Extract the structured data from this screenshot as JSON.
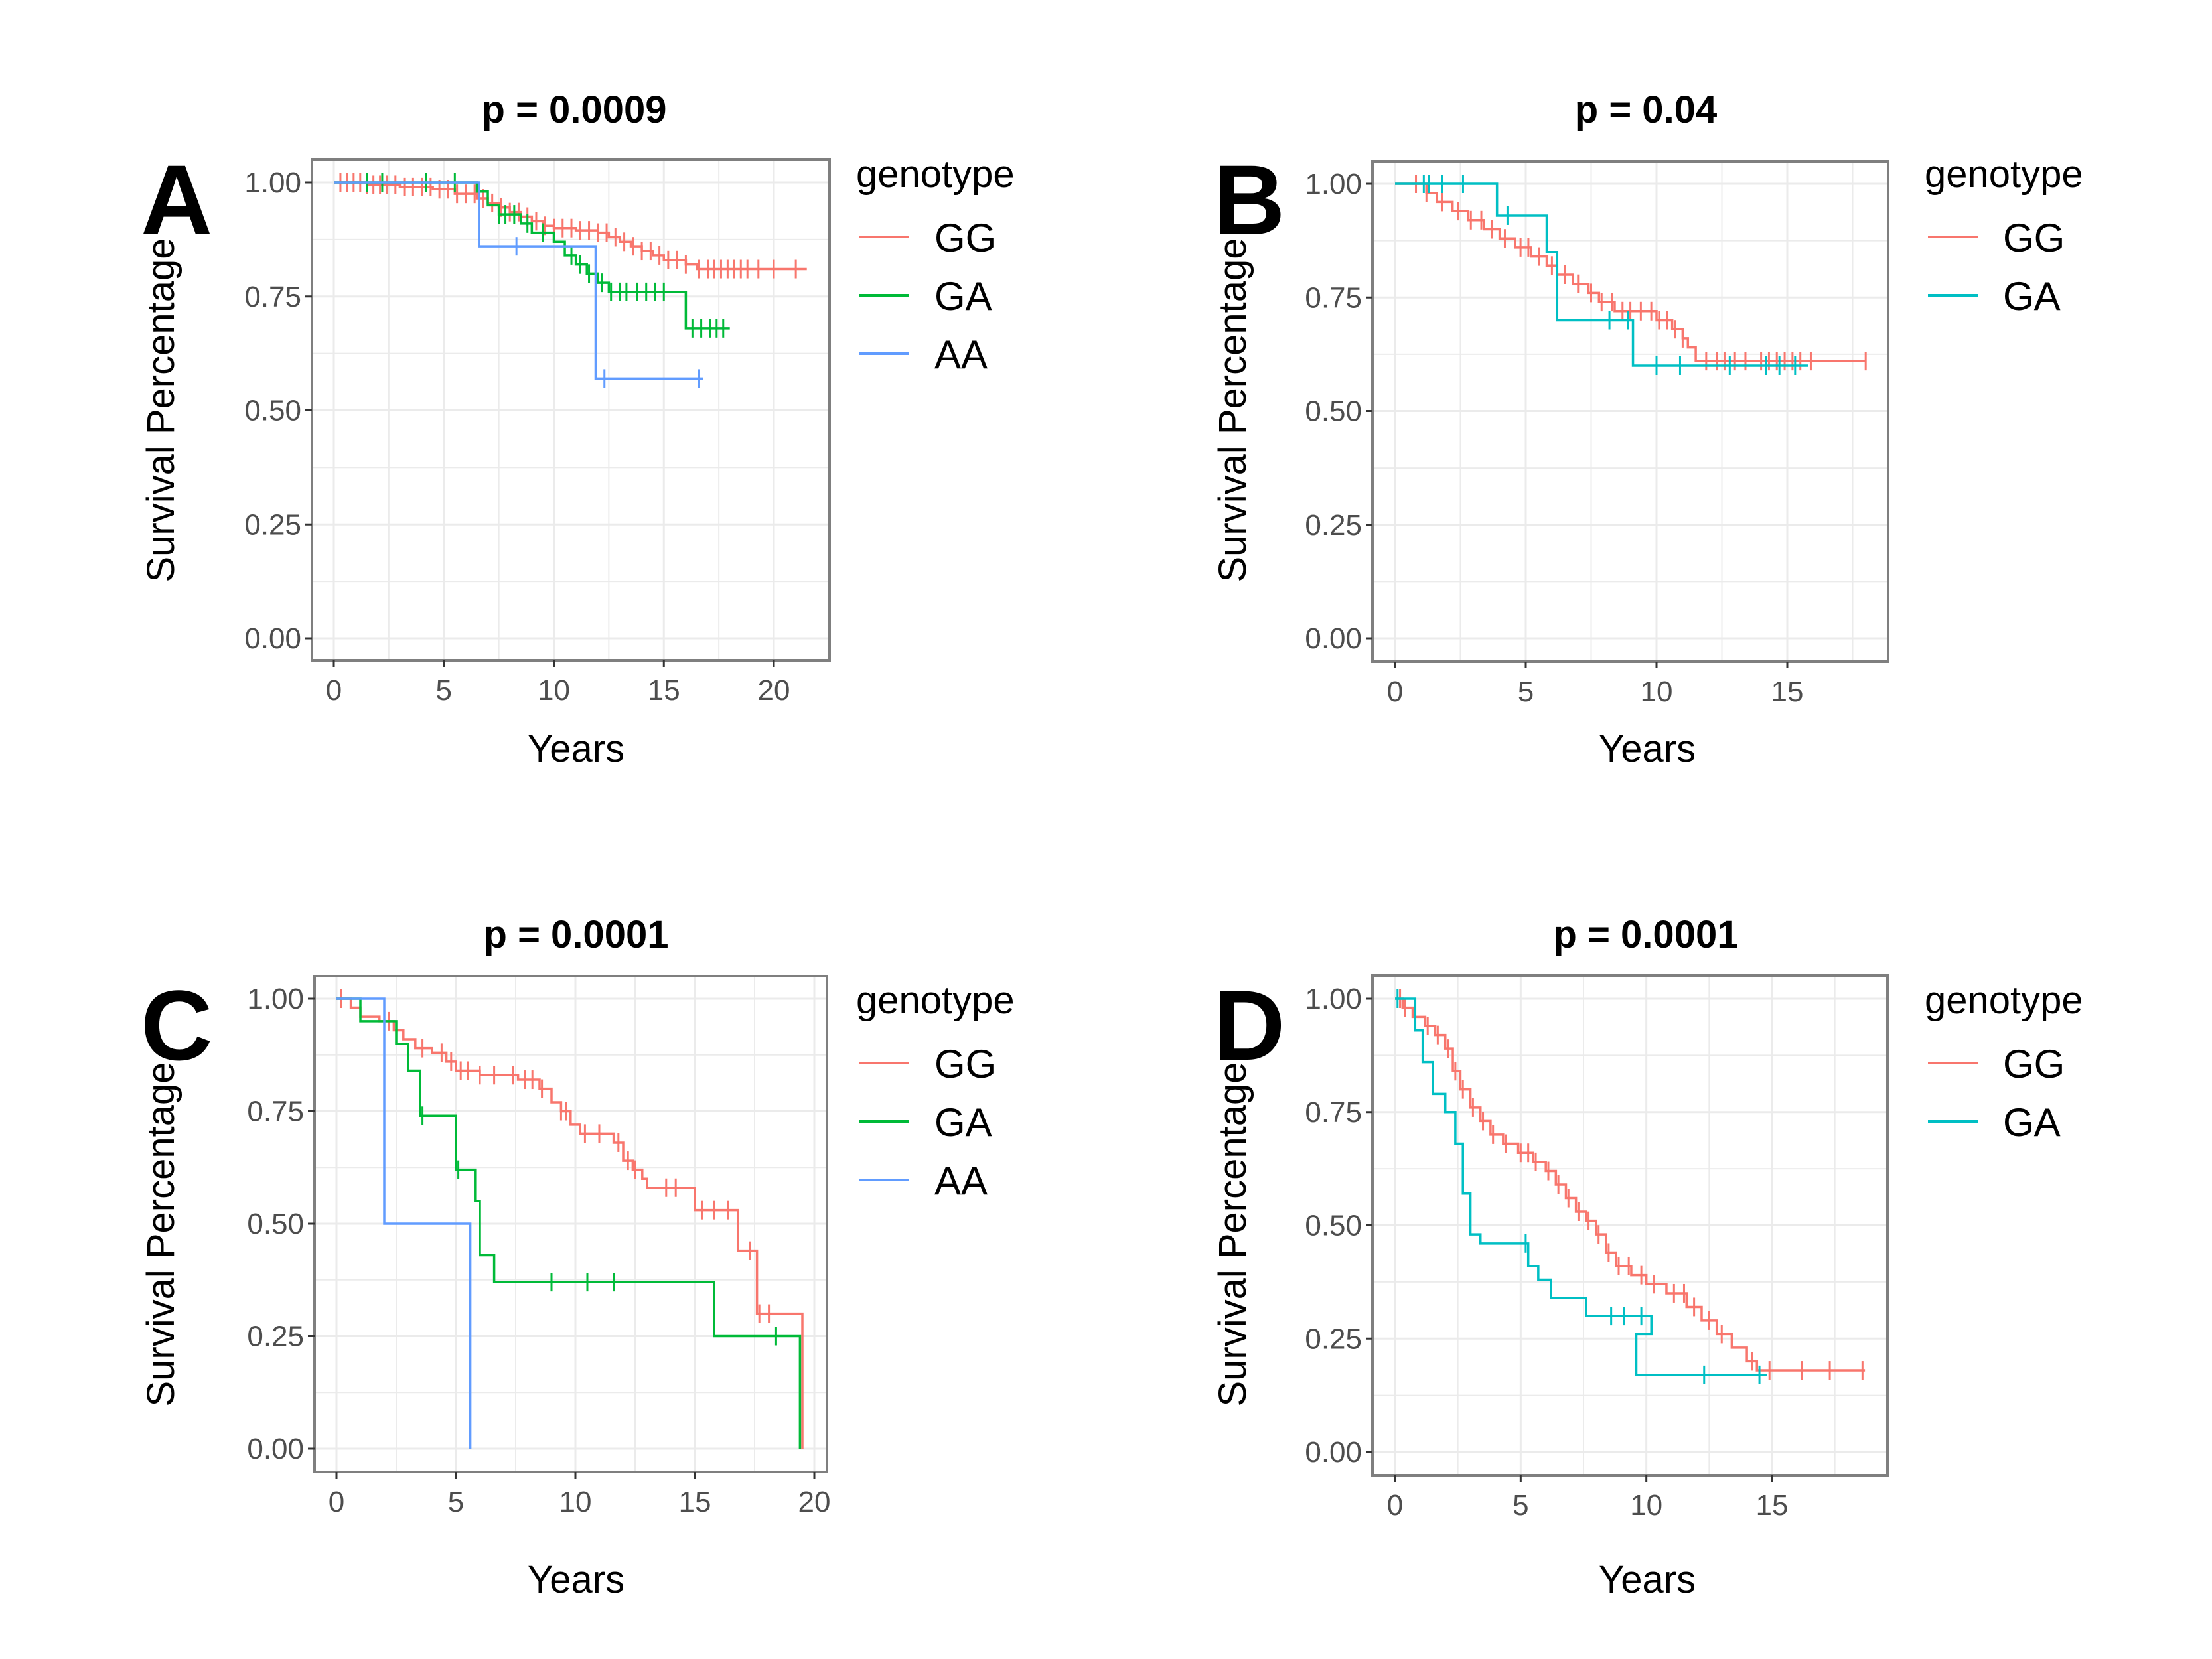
{
  "figure": {
    "description": "Kaplan-Meier survival curves by genotype, four panels"
  },
  "chart_data": [
    {
      "type": "line",
      "subtype": "kaplan-meier-step",
      "panel_label": "A",
      "title": "p = 0.0009",
      "xlabel": "Years",
      "ylabel": "Survival Percentage",
      "xlim": [
        -1,
        22.5
      ],
      "ylim": [
        -0.045,
        1.05
      ],
      "xticks": [
        0,
        5,
        10,
        15,
        20
      ],
      "xtick_labels": [
        "0",
        "5",
        "10",
        "15",
        "20"
      ],
      "yticks": [
        0,
        0.25,
        0.5,
        0.75,
        1
      ],
      "ytick_labels": [
        "0.00",
        "0.25",
        "0.50",
        "0.75",
        "1.00"
      ],
      "grid": true,
      "legend": {
        "title": "genotype",
        "placement": "right"
      },
      "series": [
        {
          "name": "GG",
          "color": "#F8766D",
          "steps": [
            [
              0,
              1.0
            ],
            [
              1.5,
              0.995
            ],
            [
              3,
              0.99
            ],
            [
              4.5,
              0.985
            ],
            [
              5.5,
              0.975
            ],
            [
              6.5,
              0.965
            ],
            [
              7,
              0.955
            ],
            [
              7.5,
              0.945
            ],
            [
              8,
              0.935
            ],
            [
              8.5,
              0.925
            ],
            [
              9,
              0.915
            ],
            [
              9.5,
              0.905
            ],
            [
              10,
              0.9
            ],
            [
              11,
              0.895
            ],
            [
              12,
              0.89
            ],
            [
              12.5,
              0.88
            ],
            [
              13,
              0.87
            ],
            [
              13.5,
              0.86
            ],
            [
              14,
              0.85
            ],
            [
              14.5,
              0.84
            ],
            [
              15,
              0.83
            ],
            [
              16,
              0.82
            ],
            [
              16.5,
              0.81
            ],
            [
              21.5,
              0.81
            ]
          ],
          "censor_times": [
            0.3,
            0.6,
            0.9,
            1.2,
            1.5,
            1.8,
            2.1,
            2.4,
            2.8,
            3.2,
            3.6,
            4,
            4.4,
            4.8,
            5.2,
            5.6,
            6,
            6.4,
            6.8,
            7.2,
            7.6,
            8,
            8.4,
            8.8,
            9.2,
            9.6,
            10,
            10.4,
            10.8,
            11.2,
            11.6,
            12,
            12.4,
            12.8,
            13.2,
            13.6,
            14,
            14.4,
            14.8,
            15.2,
            15.6,
            16,
            16.6,
            17,
            17.3,
            17.6,
            17.9,
            18.2,
            18.5,
            18.8,
            19.3,
            20,
            21
          ]
        },
        {
          "name": "GA",
          "color": "#00BA38",
          "steps": [
            [
              0,
              1.0
            ],
            [
              6.5,
              0.98
            ],
            [
              7,
              0.95
            ],
            [
              7.5,
              0.93
            ],
            [
              8.5,
              0.91
            ],
            [
              9,
              0.89
            ],
            [
              10,
              0.87
            ],
            [
              10.5,
              0.84
            ],
            [
              11,
              0.82
            ],
            [
              11.5,
              0.8
            ],
            [
              12,
              0.78
            ],
            [
              12.5,
              0.76
            ],
            [
              15.5,
              0.76
            ],
            [
              16,
              0.68
            ],
            [
              18,
              0.68
            ]
          ],
          "censor_times": [
            1.5,
            2.2,
            4.2,
            5.5,
            7.5,
            7.8,
            8.2,
            8.8,
            9.5,
            10.8,
            11.2,
            11.6,
            12.2,
            12.6,
            13,
            13.3,
            13.8,
            14.2,
            14.6,
            15,
            16.3,
            16.7,
            17.1,
            17.4,
            17.7
          ]
        },
        {
          "name": "AA",
          "color": "#619CFF",
          "steps": [
            [
              0,
              1.0
            ],
            [
              6.6,
              0.86
            ],
            [
              11.9,
              0.57
            ],
            [
              16.8,
              0.57
            ]
          ],
          "censor_times": [
            8.3,
            12.3,
            16.6
          ]
        }
      ]
    },
    {
      "type": "line",
      "subtype": "kaplan-meier-step",
      "panel_label": "B",
      "title": "p = 0.04",
      "xlabel": "Years",
      "ylabel": "Survival Percentage",
      "xlim": [
        -0.9,
        18.3
      ],
      "ylim": [
        -0.045,
        1.05
      ],
      "xticks": [
        0,
        5,
        10,
        15
      ],
      "xtick_labels": [
        "0",
        "5",
        "10",
        "15"
      ],
      "yticks": [
        0,
        0.25,
        0.5,
        0.75,
        1
      ],
      "ytick_labels": [
        "0.00",
        "0.25",
        "0.50",
        "0.75",
        "1.00"
      ],
      "grid": true,
      "legend": {
        "title": "genotype",
        "placement": "right"
      },
      "series": [
        {
          "name": "GG",
          "color": "#F8766D",
          "steps": [
            [
              0,
              1.0
            ],
            [
              1.2,
              0.98
            ],
            [
              1.6,
              0.96
            ],
            [
              2.2,
              0.94
            ],
            [
              2.8,
              0.92
            ],
            [
              3.4,
              0.9
            ],
            [
              4,
              0.88
            ],
            [
              4.6,
              0.86
            ],
            [
              5.2,
              0.84
            ],
            [
              5.8,
              0.82
            ],
            [
              6.2,
              0.8
            ],
            [
              6.8,
              0.78
            ],
            [
              7.4,
              0.76
            ],
            [
              7.8,
              0.74
            ],
            [
              8.4,
              0.72
            ],
            [
              9.4,
              0.72
            ],
            [
              10,
              0.7
            ],
            [
              10.6,
              0.68
            ],
            [
              11,
              0.66
            ],
            [
              11.2,
              0.64
            ],
            [
              11.5,
              0.61
            ],
            [
              12,
              0.61
            ],
            [
              18,
              0.61
            ]
          ],
          "censor_times": [
            0.8,
            1.2,
            1.8,
            2.4,
            2.9,
            3.3,
            3.7,
            4.2,
            4.8,
            5.1,
            5.5,
            6,
            6.5,
            7,
            7.5,
            7.9,
            8.3,
            8.7,
            9,
            9.4,
            9.8,
            10.1,
            10.4,
            10.7,
            11,
            11.9,
            12.3,
            12.6,
            13,
            13.4,
            14,
            14.3,
            14.6,
            14.9,
            15.2,
            15.5,
            15.9,
            18
          ]
        },
        {
          "name": "GA",
          "color": "#00BFC4",
          "steps": [
            [
              0,
              1.0
            ],
            [
              3.9,
              0.93
            ],
            [
              5.8,
              0.85
            ],
            [
              6.2,
              0.7
            ],
            [
              9.1,
              0.6
            ],
            [
              15.8,
              0.6
            ]
          ],
          "censor_times": [
            1.1,
            1.3,
            1.8,
            2.6,
            4.3,
            8.2,
            8.9,
            10,
            10.9,
            12.8,
            14.2,
            14.7,
            15.3
          ]
        }
      ]
    },
    {
      "type": "line",
      "subtype": "kaplan-meier-step",
      "panel_label": "C",
      "title": "p = 0.0001",
      "xlabel": "Years",
      "ylabel": "Survival Percentage",
      "xlim": [
        -0.9,
        20.5
      ],
      "ylim": [
        -0.05,
        1.05
      ],
      "xticks": [
        0,
        5,
        10,
        15,
        20
      ],
      "xtick_labels": [
        "0",
        "5",
        "10",
        "15",
        "20"
      ],
      "yticks": [
        0,
        0.25,
        0.5,
        0.75,
        1
      ],
      "ytick_labels": [
        "0.00",
        "0.25",
        "0.50",
        "0.75",
        "1.00"
      ],
      "grid": true,
      "legend": {
        "title": "genotype",
        "placement": "right"
      },
      "series": [
        {
          "name": "GG",
          "color": "#F8766D",
          "steps": [
            [
              0,
              1.0
            ],
            [
              0.6,
              0.98
            ],
            [
              1,
              0.96
            ],
            [
              1.8,
              0.95
            ],
            [
              2.4,
              0.93
            ],
            [
              2.8,
              0.91
            ],
            [
              3.3,
              0.89
            ],
            [
              4,
              0.88
            ],
            [
              4.6,
              0.86
            ],
            [
              5,
              0.84
            ],
            [
              6,
              0.83
            ],
            [
              7.6,
              0.82
            ],
            [
              8.5,
              0.8
            ],
            [
              9,
              0.77
            ],
            [
              9.4,
              0.75
            ],
            [
              9.8,
              0.72
            ],
            [
              10.2,
              0.7
            ],
            [
              11.6,
              0.68
            ],
            [
              12,
              0.64
            ],
            [
              12.4,
              0.62
            ],
            [
              12.8,
              0.6
            ],
            [
              13,
              0.58
            ],
            [
              15,
              0.53
            ],
            [
              16.8,
              0.44
            ],
            [
              17.6,
              0.3
            ],
            [
              19.5,
              0.0
            ]
          ],
          "censor_times": [
            0.2,
            2.2,
            2.5,
            3.6,
            4.4,
            4.8,
            5.2,
            5.5,
            6,
            6.6,
            7.4,
            7.9,
            8.2,
            8.6,
            9.4,
            9.6,
            10.4,
            11,
            11.8,
            12.2,
            12.5,
            13.8,
            14.2,
            15.3,
            15.8,
            16.4,
            17.3,
            17.7,
            18.1
          ]
        },
        {
          "name": "GA",
          "color": "#00BA38",
          "steps": [
            [
              0,
              1.0
            ],
            [
              1,
              0.95
            ],
            [
              2.5,
              0.9
            ],
            [
              3,
              0.84
            ],
            [
              3.5,
              0.74
            ],
            [
              5,
              0.62
            ],
            [
              5.8,
              0.55
            ],
            [
              6,
              0.43
            ],
            [
              6.6,
              0.37
            ],
            [
              15.8,
              0.25
            ],
            [
              19.4,
              0.0
            ]
          ],
          "censor_times": [
            3.6,
            5.1,
            9,
            10.5,
            11.6,
            18.4
          ]
        },
        {
          "name": "AA",
          "color": "#619CFF",
          "steps": [
            [
              0,
              1.0
            ],
            [
              2,
              0.5
            ],
            [
              5.6,
              0.0
            ]
          ],
          "censor_times": []
        }
      ]
    },
    {
      "type": "line",
      "subtype": "kaplan-meier-step",
      "panel_label": "D",
      "title": "p = 0.0001",
      "xlabel": "Years",
      "ylabel": "Survival Percentage",
      "xlim": [
        -0.9,
        19.4
      ],
      "ylim": [
        -0.05,
        1.05
      ],
      "xticks": [
        0,
        5,
        10,
        15
      ],
      "xtick_labels": [
        "0",
        "5",
        "10",
        "15"
      ],
      "yticks": [
        0,
        0.25,
        0.5,
        0.75,
        1
      ],
      "ytick_labels": [
        "0.00",
        "0.25",
        "0.50",
        "0.75",
        "1.00"
      ],
      "grid": true,
      "legend": {
        "title": "genotype",
        "placement": "right"
      },
      "series": [
        {
          "name": "GG",
          "color": "#F8766D",
          "steps": [
            [
              0,
              1.0
            ],
            [
              0.3,
              0.98
            ],
            [
              0.7,
              0.96
            ],
            [
              1.2,
              0.94
            ],
            [
              1.6,
              0.92
            ],
            [
              2,
              0.89
            ],
            [
              2.3,
              0.84
            ],
            [
              2.6,
              0.8
            ],
            [
              3,
              0.76
            ],
            [
              3.4,
              0.73
            ],
            [
              3.8,
              0.7
            ],
            [
              4.3,
              0.68
            ],
            [
              4.9,
              0.66
            ],
            [
              5.5,
              0.64
            ],
            [
              6,
              0.62
            ],
            [
              6.4,
              0.59
            ],
            [
              6.8,
              0.56
            ],
            [
              7.2,
              0.53
            ],
            [
              7.6,
              0.51
            ],
            [
              8,
              0.48
            ],
            [
              8.4,
              0.44
            ],
            [
              8.8,
              0.41
            ],
            [
              9.4,
              0.39
            ],
            [
              10,
              0.37
            ],
            [
              10.8,
              0.35
            ],
            [
              11.6,
              0.32
            ],
            [
              12.2,
              0.29
            ],
            [
              12.8,
              0.26
            ],
            [
              13.4,
              0.23
            ],
            [
              14,
              0.2
            ],
            [
              14.4,
              0.18
            ],
            [
              18.7,
              0.18
            ]
          ],
          "censor_times": [
            0.2,
            0.4,
            0.8,
            1.3,
            1.7,
            2.1,
            2.4,
            2.7,
            3.1,
            3.5,
            3.9,
            4.4,
            5,
            5.3,
            5.6,
            6.1,
            6.5,
            6.9,
            7.3,
            7.7,
            8.1,
            8.5,
            8.9,
            9.3,
            9.8,
            10.3,
            11.1,
            11.5,
            11.9,
            12.5,
            13,
            14.2,
            14.9,
            16.2,
            17.3,
            18.6
          ]
        },
        {
          "name": "GA",
          "color": "#00BFC4",
          "steps": [
            [
              0,
              1.0
            ],
            [
              0.8,
              0.93
            ],
            [
              1.1,
              0.86
            ],
            [
              1.5,
              0.79
            ],
            [
              2,
              0.75
            ],
            [
              2.4,
              0.68
            ],
            [
              2.7,
              0.57
            ],
            [
              3,
              0.48
            ],
            [
              3.4,
              0.46
            ],
            [
              5.3,
              0.41
            ],
            [
              5.7,
              0.38
            ],
            [
              6.2,
              0.34
            ],
            [
              7.6,
              0.3
            ],
            [
              10.2,
              0.26
            ],
            [
              9.6,
              0.17
            ],
            [
              14.8,
              0.17
            ]
          ],
          "censor_times": [
            0.1,
            5.2,
            8.6,
            9.1,
            9.8,
            12.3,
            14.5
          ]
        }
      ]
    }
  ],
  "panels": [
    {
      "letter": "A",
      "title": "p = 0.0009",
      "ylabel": "Survival Percentage",
      "xlabel": "Years",
      "legend_title": "genotype",
      "legend": [
        "GG",
        "GA",
        "AA"
      ]
    },
    {
      "letter": "B",
      "title": "p = 0.04",
      "ylabel": "Survival Percentage",
      "xlabel": "Years",
      "legend_title": "genotype",
      "legend": [
        "GG",
        "GA"
      ]
    },
    {
      "letter": "C",
      "title": "p = 0.0001",
      "ylabel": "Survival Percentage",
      "xlabel": "Years",
      "legend_title": "genotype",
      "legend": [
        "GG",
        "GA",
        "AA"
      ]
    },
    {
      "letter": "D",
      "title": "p = 0.0001",
      "ylabel": "Survival Percentage",
      "xlabel": "Years",
      "legend_title": "genotype",
      "legend": [
        "GG",
        "GA"
      ]
    }
  ]
}
